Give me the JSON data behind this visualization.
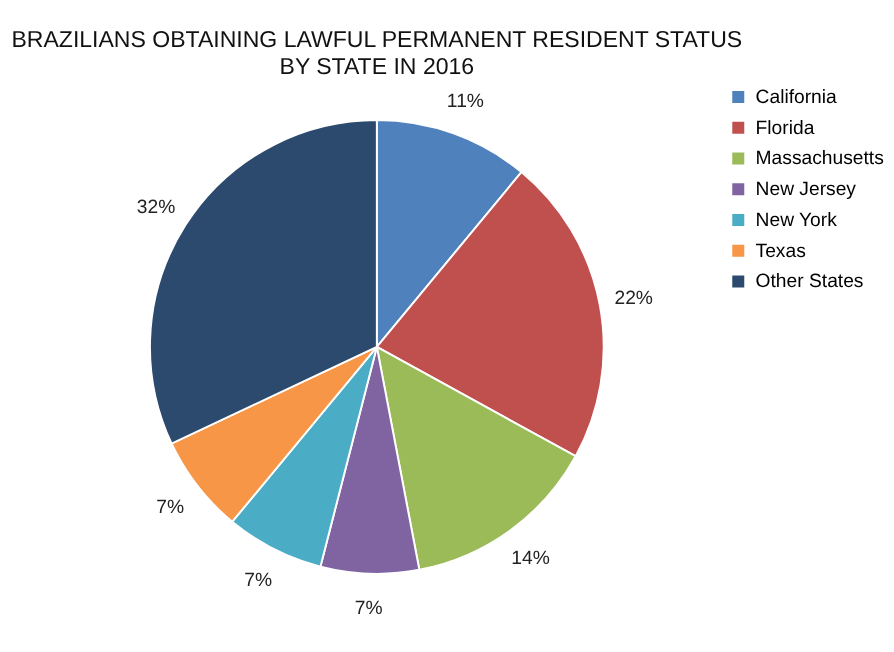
{
  "chart_data": {
    "type": "pie",
    "title": [
      "BRAZILIANS OBTAINING LAWFUL PERMANENT RESIDENT STATUS",
      "BY STATE IN 2016"
    ],
    "categories": [
      "California",
      "Florida",
      "Massachusetts",
      "New Jersey",
      "New York",
      "Texas",
      "Other States"
    ],
    "values": [
      11,
      22,
      14,
      7,
      7,
      7,
      32
    ],
    "value_labels": [
      "11%",
      "22%",
      "14%",
      "7%",
      "7%",
      "7%",
      "32%"
    ],
    "colors": [
      "#4f81bd",
      "#c0504d",
      "#9bbb59",
      "#8064a2",
      "#4bacc6",
      "#f79646",
      "#2c4a6e"
    ],
    "legend": "right"
  }
}
